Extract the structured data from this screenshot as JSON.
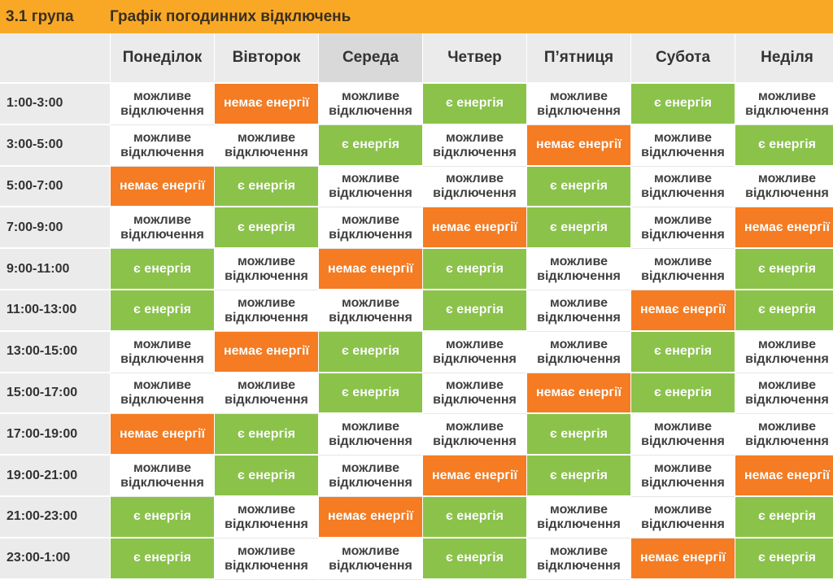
{
  "header": {
    "group": "3.1 група",
    "title": "Графік погодинних відключень"
  },
  "colors": {
    "header": "#f9a825",
    "energy_on": "#8bc34a",
    "energy_off": "#f57c22",
    "possible": "#ffffff"
  },
  "status_labels": {
    "on": "є енергія",
    "off": "немає енергії",
    "possible": "можливе відключення"
  },
  "days": [
    "Понеділок",
    "Вівторок",
    "Середа",
    "Четвер",
    "П’ятниця",
    "Субота",
    "Неділя"
  ],
  "rows": [
    {
      "time": "1:00-3:00",
      "cells": [
        "possible",
        "off",
        "possible",
        "on",
        "possible",
        "on",
        "possible"
      ]
    },
    {
      "time": "3:00-5:00",
      "cells": [
        "possible",
        "possible",
        "on",
        "possible",
        "off",
        "possible",
        "on"
      ]
    },
    {
      "time": "5:00-7:00",
      "cells": [
        "off",
        "on",
        "possible",
        "possible",
        "on",
        "possible",
        "possible"
      ]
    },
    {
      "time": "7:00-9:00",
      "cells": [
        "possible",
        "on",
        "possible",
        "off",
        "on",
        "possible",
        "off"
      ]
    },
    {
      "time": "9:00-11:00",
      "cells": [
        "on",
        "possible",
        "off",
        "on",
        "possible",
        "possible",
        "on"
      ]
    },
    {
      "time": "11:00-13:00",
      "cells": [
        "on",
        "possible",
        "possible",
        "on",
        "possible",
        "off",
        "on"
      ]
    },
    {
      "time": "13:00-15:00",
      "cells": [
        "possible",
        "off",
        "on",
        "possible",
        "possible",
        "on",
        "possible"
      ]
    },
    {
      "time": "15:00-17:00",
      "cells": [
        "possible",
        "possible",
        "on",
        "possible",
        "off",
        "on",
        "possible"
      ]
    },
    {
      "time": "17:00-19:00",
      "cells": [
        "off",
        "on",
        "possible",
        "possible",
        "on",
        "possible",
        "possible"
      ]
    },
    {
      "time": "19:00-21:00",
      "cells": [
        "possible",
        "on",
        "possible",
        "off",
        "on",
        "possible",
        "off"
      ]
    },
    {
      "time": "21:00-23:00",
      "cells": [
        "on",
        "possible",
        "off",
        "on",
        "possible",
        "possible",
        "on"
      ]
    },
    {
      "time": "23:00-1:00",
      "cells": [
        "on",
        "possible",
        "possible",
        "on",
        "possible",
        "off",
        "on"
      ]
    }
  ]
}
